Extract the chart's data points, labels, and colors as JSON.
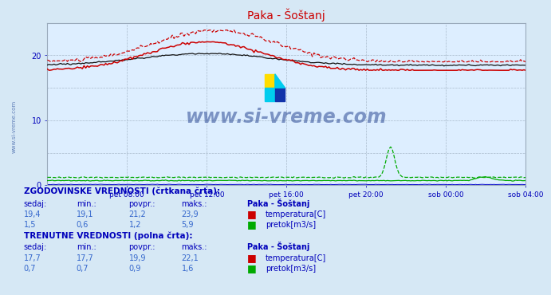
{
  "title": "Paka - Šoštanj",
  "bg_color": "#d6e8f5",
  "plot_bg_color": "#ddeeff",
  "grid_color_major": "#aabbcc",
  "grid_color_minor": "#c8d8e8",
  "text_color": "#0000bb",
  "watermark": "www.si-vreme.com",
  "xlabel_ticks": [
    "pet 08:00",
    "pet 12:00",
    "pet 16:00",
    "pet 20:00",
    "sob 00:00",
    "sob 04:00"
  ],
  "ylim": [
    0,
    25
  ],
  "yticks": [
    0,
    10,
    20
  ],
  "n_points": 288,
  "temp_color": "#cc0000",
  "flow_color": "#00aa00",
  "height_color": "#0000cc",
  "black_color": "#111111"
}
